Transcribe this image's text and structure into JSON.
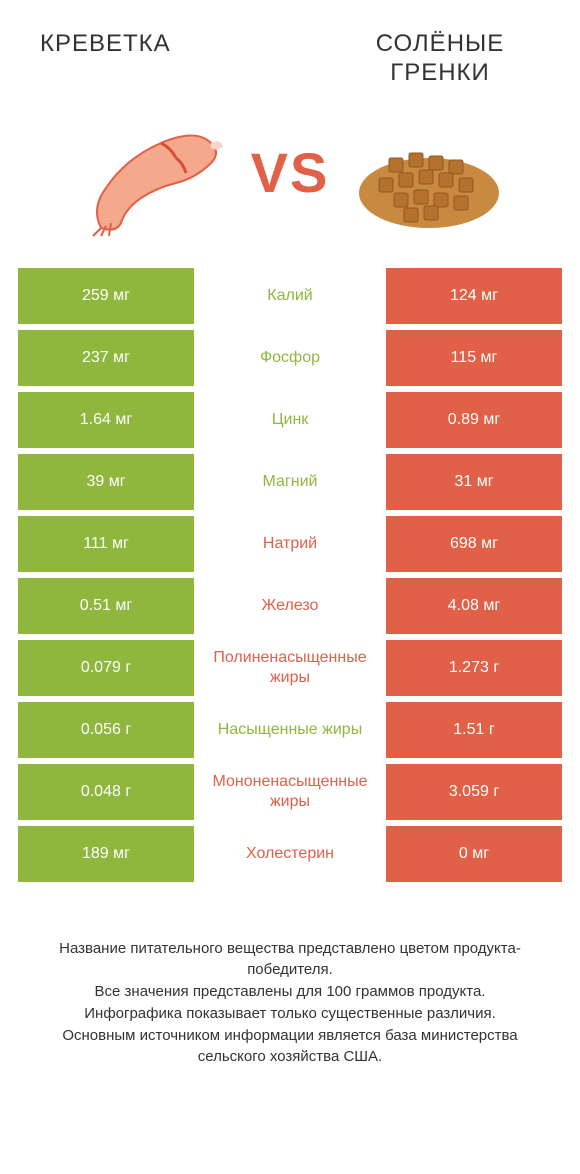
{
  "header": {
    "left_title": "КРЕВЕТКА",
    "right_title": "СОЛЁНЫЕ ГРЕНКИ"
  },
  "vs": "VS",
  "colors": {
    "green": "#8fb73e",
    "orange": "#e06048"
  },
  "rows": [
    {
      "left": "259 мг",
      "label": "Калий",
      "right": "124 мг",
      "winner": "left"
    },
    {
      "left": "237 мг",
      "label": "Фосфор",
      "right": "115 мг",
      "winner": "left"
    },
    {
      "left": "1.64 мг",
      "label": "Цинк",
      "right": "0.89 мг",
      "winner": "left"
    },
    {
      "left": "39 мг",
      "label": "Магний",
      "right": "31 мг",
      "winner": "left"
    },
    {
      "left": "111 мг",
      "label": "Натрий",
      "right": "698 мг",
      "winner": "right"
    },
    {
      "left": "0.51 мг",
      "label": "Железо",
      "right": "4.08 мг",
      "winner": "right"
    },
    {
      "left": "0.079 г",
      "label": "Полиненасыщенные жиры",
      "right": "1.273 г",
      "winner": "right"
    },
    {
      "left": "0.056 г",
      "label": "Насыщенные жиры",
      "right": "1.51 г",
      "winner": "left"
    },
    {
      "left": "0.048 г",
      "label": "Мононенасыщенные жиры",
      "right": "3.059 г",
      "winner": "right"
    },
    {
      "left": "189 мг",
      "label": "Холестерин",
      "right": "0 мг",
      "winner": "right"
    }
  ],
  "footer": "Название питательного вещества представлено цветом продукта-победителя.\nВсе значения представлены для 100 граммов продукта.\nИнфографика показывает только существенные различия.\nОсновным источником информации является база министерства сельского хозяйства США."
}
